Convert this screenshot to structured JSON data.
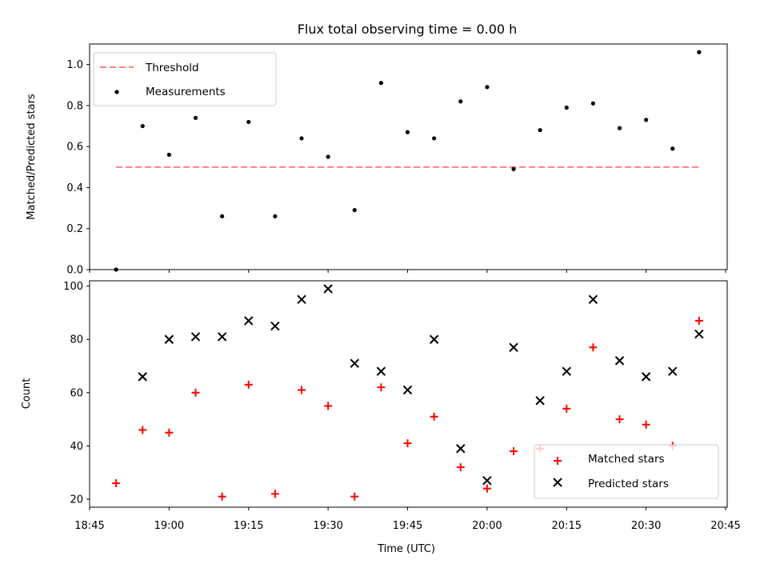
{
  "chart_data": [
    {
      "type": "scatter",
      "title": "Flux total observing time = 0.00 h",
      "xlabel": "",
      "ylabel": "Matched/Predicted stars",
      "ylim": [
        0,
        1.1
      ],
      "yticks": [
        "0.0",
        "0.2",
        "0.4",
        "0.6",
        "0.8",
        "1.0"
      ],
      "ytick_values": [
        0,
        0.2,
        0.4,
        0.6,
        0.8,
        1.0
      ],
      "xlim_minutes_since_1845": [
        0,
        120
      ],
      "xticks_minutes_since_1845": [
        0,
        15,
        30,
        45,
        60,
        75,
        90,
        105,
        120
      ],
      "grid": false,
      "legend_position": "upper-left",
      "threshold": {
        "name": "Threshold",
        "value": 0.5,
        "color": "#ff7f7f",
        "style": "dashed",
        "x_range": [
          "18:50",
          "20:40"
        ]
      },
      "series": [
        {
          "name": "Measurements",
          "marker": "dot",
          "color": "#000000",
          "x": [
            "18:50",
            "18:55",
            "19:00",
            "19:05",
            "19:10",
            "19:15",
            "19:20",
            "19:25",
            "19:30",
            "19:35",
            "19:40",
            "19:45",
            "19:50",
            "19:55",
            "20:00",
            "20:05",
            "20:10",
            "20:15",
            "20:20",
            "20:25",
            "20:30",
            "20:35",
            "20:40"
          ],
          "values": [
            0.0,
            0.7,
            0.56,
            0.74,
            0.26,
            0.72,
            0.26,
            0.64,
            0.55,
            0.29,
            0.91,
            0.67,
            0.64,
            0.82,
            0.89,
            0.49,
            0.68,
            0.79,
            0.81,
            0.69,
            0.73,
            0.59,
            1.06
          ]
        }
      ]
    },
    {
      "type": "scatter",
      "title": "",
      "xlabel": "Time (UTC)",
      "ylabel": "Count",
      "ylim": [
        17,
        102
      ],
      "yticks": [
        "20",
        "40",
        "60",
        "80",
        "100"
      ],
      "ytick_values": [
        20,
        40,
        60,
        80,
        100
      ],
      "xticks": [
        "18:45",
        "19:00",
        "19:15",
        "19:30",
        "19:45",
        "20:00",
        "20:15",
        "20:30",
        "20:45"
      ],
      "grid": false,
      "legend_position": "lower-right",
      "series": [
        {
          "name": "Matched stars",
          "marker": "plus",
          "color": "#ff0000",
          "x": [
            "18:50",
            "18:55",
            "19:00",
            "19:05",
            "19:10",
            "19:15",
            "19:20",
            "19:25",
            "19:30",
            "19:35",
            "19:40",
            "19:45",
            "19:50",
            "19:55",
            "20:00",
            "20:05",
            "20:10",
            "20:15",
            "20:20",
            "20:25",
            "20:30",
            "20:35",
            "20:40"
          ],
          "values": [
            26,
            46,
            45,
            60,
            21,
            63,
            22,
            61,
            55,
            21,
            62,
            41,
            51,
            32,
            24,
            38,
            39,
            54,
            77,
            50,
            48,
            40,
            87
          ]
        },
        {
          "name": "Predicted stars",
          "marker": "x",
          "color": "#000000",
          "x": [
            "18:50",
            "18:55",
            "19:00",
            "19:05",
            "19:10",
            "19:15",
            "19:20",
            "19:25",
            "19:30",
            "19:35",
            "19:40",
            "19:45",
            "19:50",
            "19:55",
            "20:00",
            "20:05",
            "20:10",
            "20:15",
            "20:20",
            "20:25",
            "20:30",
            "20:35",
            "20:40"
          ],
          "values": [
            null,
            66,
            80,
            81,
            81,
            87,
            85,
            95,
            99,
            71,
            68,
            61,
            80,
            39,
            27,
            77,
            57,
            68,
            95,
            72,
            66,
            68,
            82
          ]
        }
      ]
    }
  ]
}
